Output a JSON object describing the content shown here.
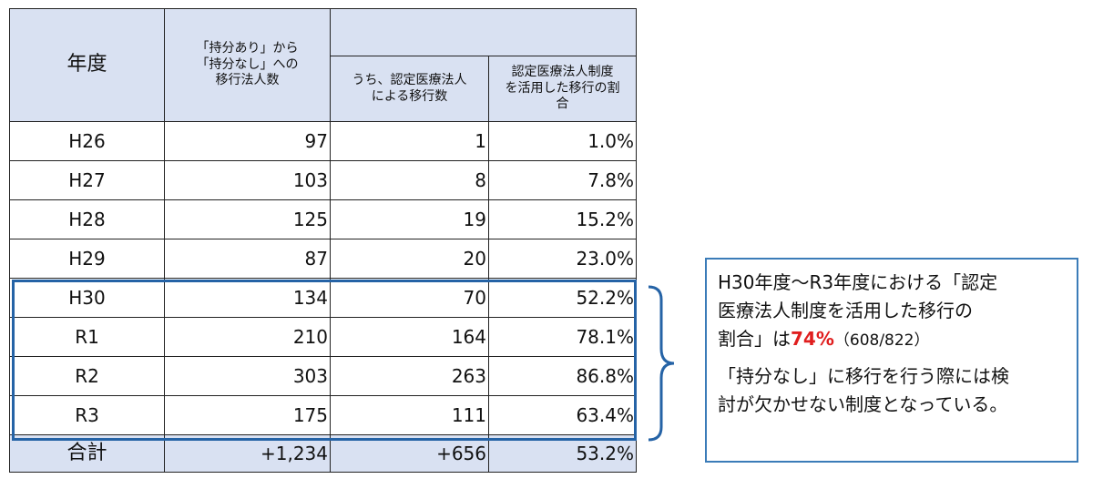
{
  "table": {
    "headers": {
      "year": "年度",
      "transitions": [
        "「持分あり」から",
        "「持分なし」への",
        "移行法人数"
      ],
      "certified": [
        "うち、認定医療法人",
        "による移行数"
      ],
      "ratio": [
        "認定医療法人制度",
        "を活用した移行の割",
        "合"
      ]
    },
    "rows": [
      {
        "year": "H26",
        "transitions": "97",
        "certified": "1",
        "ratio": "1.0%"
      },
      {
        "year": "H27",
        "transitions": "103",
        "certified": "8",
        "ratio": "7.8%"
      },
      {
        "year": "H28",
        "transitions": "125",
        "certified": "19",
        "ratio": "15.2%"
      },
      {
        "year": "H29",
        "transitions": "87",
        "certified": "20",
        "ratio": "23.0%"
      },
      {
        "year": "H30",
        "transitions": "134",
        "certified": "70",
        "ratio": "52.2%"
      },
      {
        "year": "R1",
        "transitions": "210",
        "certified": "164",
        "ratio": "78.1%"
      },
      {
        "year": "R2",
        "transitions": "303",
        "certified": "263",
        "ratio": "86.8%"
      },
      {
        "year": "R3",
        "transitions": "175",
        "certified": "111",
        "ratio": "63.4%"
      }
    ],
    "total": {
      "year": "合計",
      "transitions": "+1,234",
      "certified": "+656",
      "ratio": "53.2%"
    }
  },
  "callout": {
    "p1_lines": [
      "H30年度～R3年度における「認定",
      "医療法人制度を活用した移行の"
    ],
    "p1_prefix": "割合」は",
    "p1_highlight": "74%",
    "p1_suffix": "（608/822）",
    "p2_lines": [
      "「持分なし」に移行を行う際には検",
      "討が欠かせない制度となっている。"
    ]
  },
  "colors": {
    "header_fill": "#d9e1f2",
    "highlight_border": "#2563a6",
    "callout_border": "#3b7cb8",
    "accent": "#e01e1e"
  }
}
